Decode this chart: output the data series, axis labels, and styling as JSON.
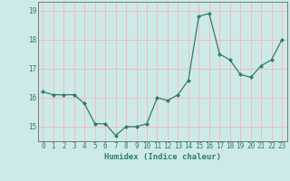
{
  "x": [
    0,
    1,
    2,
    3,
    4,
    5,
    6,
    7,
    8,
    9,
    10,
    11,
    12,
    13,
    14,
    15,
    16,
    17,
    18,
    19,
    20,
    21,
    22,
    23
  ],
  "y": [
    16.2,
    16.1,
    16.1,
    16.1,
    15.8,
    15.1,
    15.1,
    14.7,
    15.0,
    15.0,
    15.1,
    16.0,
    15.9,
    16.1,
    16.6,
    18.8,
    18.9,
    17.5,
    17.3,
    16.8,
    16.7,
    17.1,
    17.3,
    18.0
  ],
  "line_color": "#2e7d6e",
  "marker": "D",
  "marker_size": 2.0,
  "bg_color": "#ceeae8",
  "grid_color": "#f0bcbc",
  "axis_color": "#2e7d6e",
  "xlabel": "Humidex (Indice chaleur)",
  "ylim": [
    14.5,
    19.3
  ],
  "yticks": [
    15,
    16,
    17,
    18,
    19
  ],
  "xticks": [
    0,
    1,
    2,
    3,
    4,
    5,
    6,
    7,
    8,
    9,
    10,
    11,
    12,
    13,
    14,
    15,
    16,
    17,
    18,
    19,
    20,
    21,
    22,
    23
  ]
}
